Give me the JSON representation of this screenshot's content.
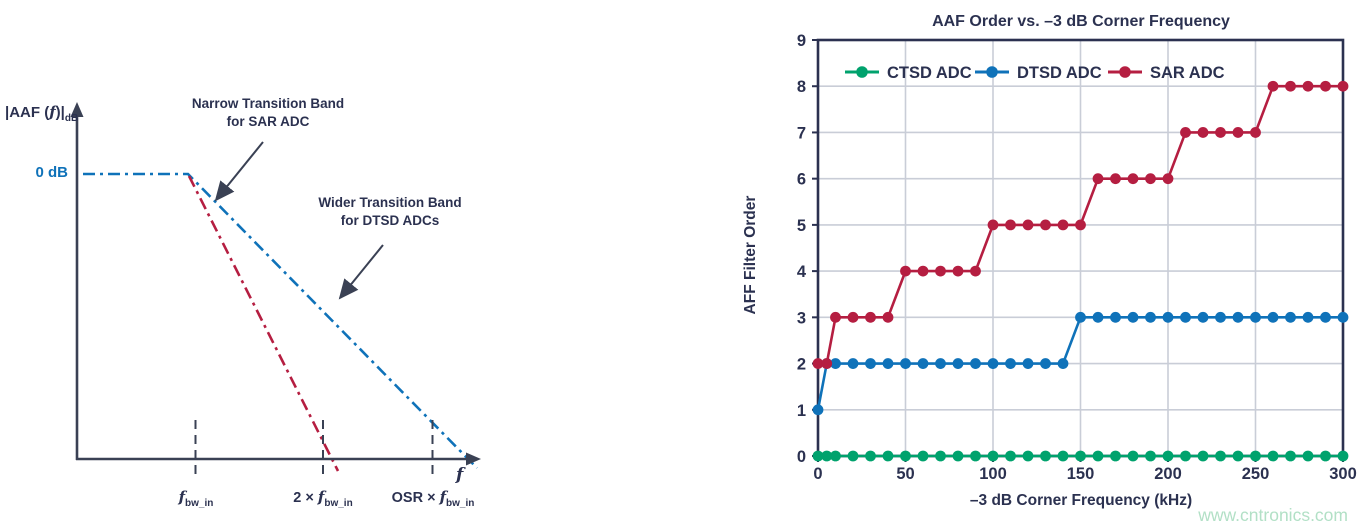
{
  "left_diagram": {
    "y_axis_label": {
      "pre": "|AAF (",
      "f": "f",
      "post": ")|",
      "sub": "dB"
    },
    "zero_db_label": "0 dB",
    "annotation_sar": {
      "line1": "Narrow Transition Band",
      "line2": "for SAR ADC"
    },
    "annotation_dtsd": {
      "line1": "Wider Transition Band",
      "line2": "for DTSD ADCs"
    },
    "x_axis_label": "f",
    "x_ticks": [
      {
        "prefix": "",
        "f": "f",
        "sub": "bw_in"
      },
      {
        "prefix": "2 × ",
        "f": "f",
        "sub": "bw_in"
      },
      {
        "prefix": "OSR × ",
        "f": "f",
        "sub": "bw_in"
      }
    ],
    "colors": {
      "sar_line": "#b51e41",
      "dtsd_line": "#0f72b9",
      "axis": "#2b3150"
    }
  },
  "chart_data": {
    "type": "line",
    "title": "AAF Order vs. –3 dB Corner Frequency",
    "xlabel": "–3 dB Corner Frequency (kHz)",
    "ylabel": "AFF Filter Order",
    "x": [
      0,
      5,
      10,
      20,
      30,
      40,
      50,
      60,
      70,
      80,
      90,
      100,
      110,
      120,
      130,
      140,
      150,
      160,
      170,
      180,
      190,
      200,
      210,
      220,
      230,
      240,
      250,
      260,
      270,
      280,
      290,
      300
    ],
    "series": [
      {
        "name": "CTSD ADC",
        "color": "#00a26d",
        "values": [
          0,
          0,
          0,
          0,
          0,
          0,
          0,
          0,
          0,
          0,
          0,
          0,
          0,
          0,
          0,
          0,
          0,
          0,
          0,
          0,
          0,
          0,
          0,
          0,
          0,
          0,
          0,
          0,
          0,
          0,
          0,
          0
        ]
      },
      {
        "name": "DTSD ADC",
        "color": "#0f72b9",
        "values": [
          1,
          2,
          2,
          2,
          2,
          2,
          2,
          2,
          2,
          2,
          2,
          2,
          2,
          2,
          2,
          2,
          3,
          3,
          3,
          3,
          3,
          3,
          3,
          3,
          3,
          3,
          3,
          3,
          3,
          3,
          3,
          3
        ]
      },
      {
        "name": "SAR ADC",
        "color": "#b51e41",
        "values": [
          2,
          2,
          3,
          3,
          3,
          3,
          4,
          4,
          4,
          4,
          4,
          5,
          5,
          5,
          5,
          5,
          5,
          6,
          6,
          6,
          6,
          6,
          7,
          7,
          7,
          7,
          7,
          8,
          8,
          8,
          8,
          8
        ]
      }
    ],
    "xlim": [
      0,
      300
    ],
    "ylim": [
      0,
      9
    ],
    "x_ticks": [
      0,
      50,
      100,
      150,
      200,
      250,
      300
    ],
    "y_ticks": [
      0,
      1,
      2,
      3,
      4,
      5,
      6,
      7,
      8,
      9
    ],
    "grid": true,
    "legend_position": "top-inside",
    "marker": "circle",
    "grid_color": "#c9cdd7",
    "axis_color": "#2b3150"
  },
  "watermark": "www.cntronics.com",
  "watermark_color": "#b2e0c6"
}
